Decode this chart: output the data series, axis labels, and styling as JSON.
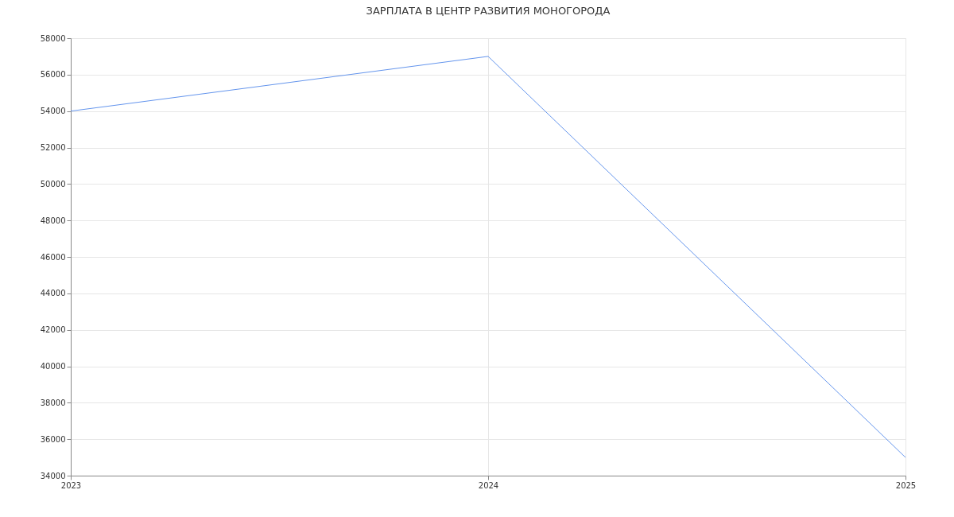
{
  "chart_data": {
    "type": "line",
    "title": "ЗАРПЛАТА В  ЦЕНТР РАЗВИТИЯ МОНОГОРОДА",
    "categories": [
      "2023",
      "2024",
      "2025"
    ],
    "series": [
      {
        "color": "#6495ed",
        "values": [
          54000,
          57000,
          35000
        ]
      }
    ],
    "ylim": [
      34000,
      58000
    ],
    "yticks": [
      34000,
      36000,
      38000,
      40000,
      42000,
      44000,
      46000,
      48000,
      50000,
      52000,
      54000,
      56000,
      58000
    ],
    "grid": true,
    "marker": "none",
    "line_style": "solid",
    "legend": false
  }
}
